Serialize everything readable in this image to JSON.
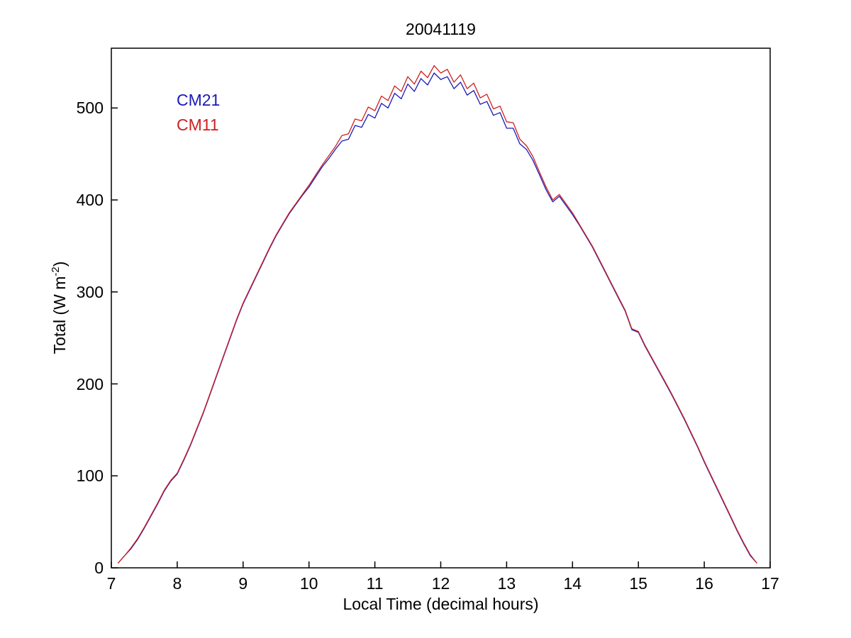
{
  "figure": {
    "title": "20041119",
    "xlabel": "Local Time (decimal hours)",
    "ylabel_prefix": "Total (W m",
    "ylabel_sup": "-2",
    "ylabel_suffix": ")",
    "background_color": "#FFFFFF",
    "axis_color": "#000000"
  },
  "legend": [
    {
      "label": "CM21",
      "color": "#1A1AB8"
    },
    {
      "label": "CM11",
      "color": "#CE2020"
    }
  ],
  "chart_data": {
    "type": "line",
    "title": "20041119",
    "xlabel": "Local Time (decimal hours)",
    "ylabel": "Total (W m⁻²)",
    "xlim": [
      7,
      17
    ],
    "ylim": [
      0,
      565
    ],
    "xticks": [
      7,
      8,
      9,
      10,
      11,
      12,
      13,
      14,
      15,
      16,
      17
    ],
    "yticks": [
      0,
      100,
      200,
      300,
      400,
      500
    ],
    "grid": false,
    "legend_position": "upper-left-inside",
    "x": [
      7.1,
      7.2,
      7.3,
      7.4,
      7.5,
      7.6,
      7.7,
      7.8,
      7.9,
      8.0,
      8.1,
      8.2,
      8.3,
      8.4,
      8.5,
      8.6,
      8.7,
      8.8,
      8.9,
      9.0,
      9.1,
      9.2,
      9.3,
      9.4,
      9.5,
      9.6,
      9.7,
      9.8,
      9.9,
      10.0,
      10.1,
      10.2,
      10.3,
      10.4,
      10.5,
      10.6,
      10.7,
      10.8,
      10.9,
      11.0,
      11.1,
      11.2,
      11.3,
      11.4,
      11.5,
      11.6,
      11.7,
      11.8,
      11.9,
      12.0,
      12.1,
      12.2,
      12.3,
      12.4,
      12.5,
      12.6,
      12.7,
      12.8,
      12.9,
      13.0,
      13.1,
      13.2,
      13.3,
      13.4,
      13.5,
      13.6,
      13.7,
      13.8,
      13.9,
      14.0,
      14.1,
      14.2,
      14.3,
      14.4,
      14.5,
      14.6,
      14.7,
      14.8,
      14.9,
      15.0,
      15.1,
      15.2,
      15.3,
      15.4,
      15.5,
      15.6,
      15.7,
      15.8,
      15.9,
      16.0,
      16.1,
      16.2,
      16.3,
      16.4,
      16.5,
      16.6,
      16.7,
      16.8
    ],
    "series": [
      {
        "name": "CM21",
        "color": "#1A1AB8",
        "values": [
          5,
          13,
          21,
          31,
          43,
          56,
          69,
          83,
          94,
          102,
          117,
          133,
          151,
          169,
          189,
          209,
          229,
          249,
          269,
          287,
          302,
          317,
          332,
          347,
          361,
          373,
          385,
          395,
          405,
          414,
          425,
          436,
          445,
          455,
          464,
          466,
          481,
          479,
          493,
          489,
          505,
          500,
          516,
          510,
          526,
          518,
          532,
          525,
          538,
          531,
          534,
          521,
          528,
          514,
          519,
          504,
          507,
          492,
          495,
          478,
          478,
          461,
          455,
          443,
          427,
          411,
          398,
          404,
          394,
          384,
          373,
          361,
          349,
          335,
          321,
          307,
          293,
          279,
          259,
          256,
          241,
          228,
          215,
          202,
          189,
          175,
          161,
          146,
          131,
          115,
          100,
          85,
          70,
          55,
          40,
          26,
          13,
          5
        ]
      },
      {
        "name": "CM11",
        "color": "#CE2020",
        "values": [
          5,
          13,
          22,
          32,
          44,
          57,
          70,
          84,
          95,
          103,
          118,
          134,
          152,
          170,
          190,
          210,
          230,
          250,
          270,
          288,
          303,
          318,
          333,
          348,
          362,
          374,
          386,
          396,
          406,
          416,
          427,
          438,
          448,
          458,
          470,
          472,
          488,
          486,
          501,
          497,
          513,
          508,
          524,
          518,
          534,
          526,
          540,
          533,
          546,
          538,
          542,
          528,
          536,
          521,
          527,
          511,
          515,
          499,
          502,
          485,
          484,
          466,
          459,
          447,
          430,
          414,
          400,
          406,
          396,
          386,
          374,
          362,
          350,
          336,
          322,
          308,
          294,
          280,
          260,
          257,
          242,
          229,
          216,
          203,
          190,
          176,
          162,
          147,
          132,
          116,
          101,
          86,
          71,
          56,
          41,
          27,
          14,
          5
        ]
      }
    ]
  },
  "icons": {}
}
